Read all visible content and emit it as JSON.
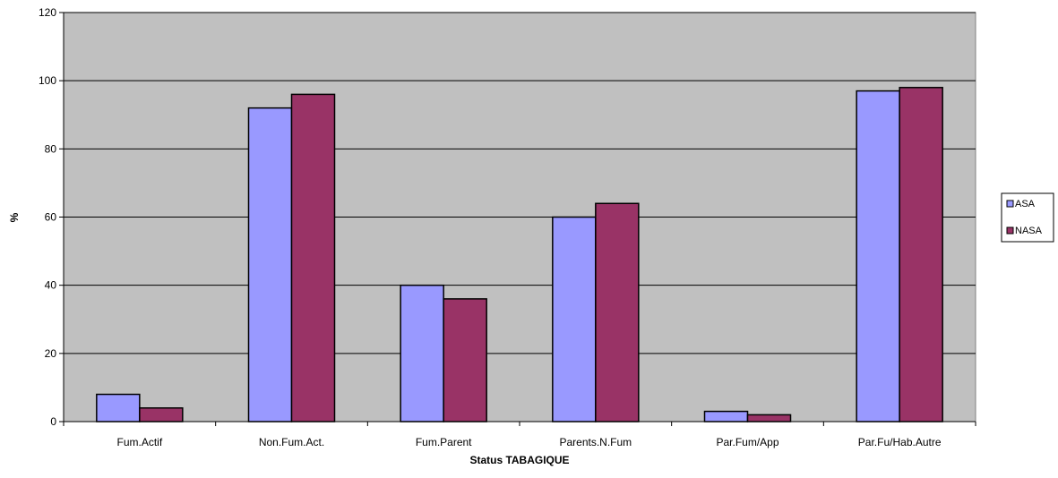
{
  "chart_data": {
    "type": "bar",
    "title": "",
    "xlabel": "Status TABAGIQUE",
    "ylabel": "%",
    "ylim": [
      0,
      120
    ],
    "yticks": [
      0,
      20,
      40,
      60,
      80,
      100,
      120
    ],
    "grid": true,
    "legend_position": "right",
    "plot_background": "#c0c0c0",
    "categories": [
      "Fum.Actif",
      "Non.Fum.Act.",
      "Fum.Parent",
      "Parents.N.Fum",
      "Par.Fum/App",
      "Par.Fu/Hab.Autre"
    ],
    "series": [
      {
        "name": "ASA",
        "color": "#9999ff",
        "values": [
          8,
          92,
          40,
          60,
          3,
          97
        ]
      },
      {
        "name": "NASA",
        "color": "#993366",
        "values": [
          4,
          96,
          36,
          64,
          2,
          98
        ]
      }
    ]
  }
}
